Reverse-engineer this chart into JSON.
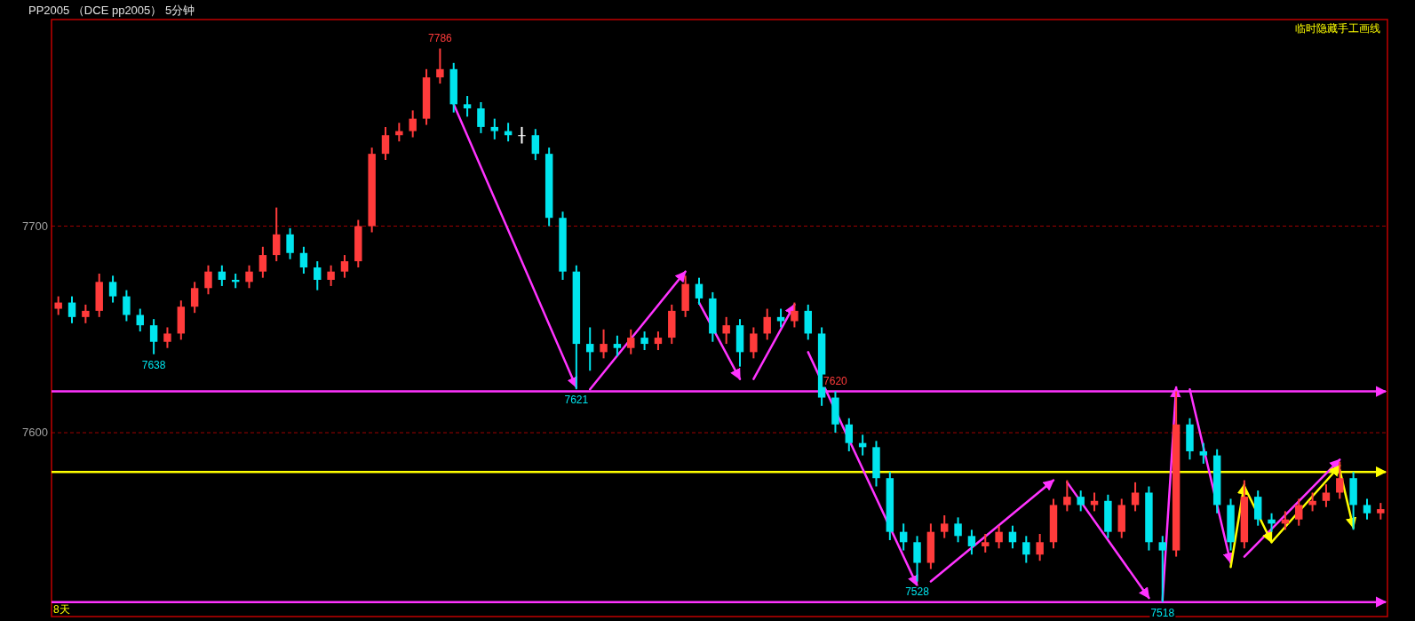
{
  "chart_data": {
    "type": "candlestick",
    "title": "PP2005 （DCE pp2005） 5分钟",
    "categories": [
      null,
      null,
      null,
      null,
      null,
      null,
      null,
      null,
      null,
      null,
      null,
      null,
      null,
      null,
      null,
      null,
      null,
      null,
      null,
      null,
      null,
      null,
      null,
      null,
      null,
      null,
      null,
      null,
      null,
      null,
      null,
      null,
      null,
      null,
      null,
      null,
      null,
      null,
      null,
      null,
      null,
      null,
      null,
      null,
      null,
      null,
      null,
      null,
      null,
      null,
      null,
      null,
      null,
      null,
      null,
      null,
      null,
      null,
      null,
      null,
      null,
      null,
      null,
      null,
      null,
      null,
      null,
      null,
      null,
      null,
      null,
      null,
      null,
      null,
      null,
      null,
      null,
      null,
      null,
      null,
      null,
      null,
      null,
      null,
      null,
      null,
      null,
      null,
      null,
      null,
      null,
      null,
      null,
      null,
      null,
      null,
      null,
      null
    ],
    "ohlc": [
      [
        7660,
        7666,
        7657,
        7663
      ],
      [
        7663,
        7666,
        7653,
        7656
      ],
      [
        7656,
        7662,
        7653,
        7659
      ],
      [
        7659,
        7677,
        7656,
        7673
      ],
      [
        7673,
        7676,
        7663,
        7666
      ],
      [
        7666,
        7669,
        7654,
        7657
      ],
      [
        7657,
        7660,
        7649,
        7652
      ],
      [
        7652,
        7655,
        7638,
        7644
      ],
      [
        7644,
        7651,
        7641,
        7648
      ],
      [
        7648,
        7664,
        7645,
        7661
      ],
      [
        7661,
        7673,
        7658,
        7670
      ],
      [
        7670,
        7681,
        7667,
        7678
      ],
      [
        7678,
        7681,
        7671,
        7674
      ],
      [
        7674,
        7677,
        7670,
        7673
      ],
      [
        7673,
        7681,
        7670,
        7678
      ],
      [
        7678,
        7690,
        7675,
        7686
      ],
      [
        7686,
        7709,
        7683,
        7696
      ],
      [
        7696,
        7699,
        7684,
        7687
      ],
      [
        7687,
        7690,
        7677,
        7680
      ],
      [
        7680,
        7683,
        7669,
        7674
      ],
      [
        7674,
        7681,
        7671,
        7678
      ],
      [
        7678,
        7686,
        7675,
        7683
      ],
      [
        7683,
        7703,
        7680,
        7700
      ],
      [
        7700,
        7738,
        7697,
        7735
      ],
      [
        7735,
        7748,
        7732,
        7744
      ],
      [
        7744,
        7750,
        7741,
        7746
      ],
      [
        7746,
        7756,
        7743,
        7752
      ],
      [
        7752,
        7776,
        7749,
        7772
      ],
      [
        7772,
        7786,
        7769,
        7776
      ],
      [
        7776,
        7779,
        7755,
        7759
      ],
      [
        7759,
        7763,
        7753,
        7757
      ],
      [
        7757,
        7760,
        7745,
        7748
      ],
      [
        7748,
        7752,
        7742,
        7746
      ],
      [
        7746,
        7750,
        7741,
        7744
      ],
      [
        7744,
        7748,
        7740,
        7744
      ],
      [
        7744,
        7747,
        7732,
        7735
      ],
      [
        7735,
        7738,
        7700,
        7704
      ],
      [
        7704,
        7707,
        7674,
        7678
      ],
      [
        7678,
        7681,
        7621,
        7643
      ],
      [
        7643,
        7651,
        7630,
        7639
      ],
      [
        7639,
        7650,
        7636,
        7643
      ],
      [
        7643,
        7647,
        7637,
        7641
      ],
      [
        7641,
        7650,
        7638,
        7646
      ],
      [
        7646,
        7649,
        7640,
        7643
      ],
      [
        7643,
        7649,
        7640,
        7646
      ],
      [
        7646,
        7662,
        7643,
        7659
      ],
      [
        7659,
        7676,
        7656,
        7672
      ],
      [
        7672,
        7675,
        7662,
        7665
      ],
      [
        7665,
        7668,
        7644,
        7648
      ],
      [
        7648,
        7656,
        7643,
        7652
      ],
      [
        7652,
        7655,
        7632,
        7639
      ],
      [
        7639,
        7651,
        7636,
        7648
      ],
      [
        7648,
        7660,
        7645,
        7656
      ],
      [
        7656,
        7660,
        7651,
        7654
      ],
      [
        7654,
        7663,
        7651,
        7659
      ],
      [
        7659,
        7662,
        7645,
        7648
      ],
      [
        7648,
        7651,
        7613,
        7617
      ],
      [
        7617,
        7620,
        7600,
        7604
      ],
      [
        7604,
        7607,
        7591,
        7595
      ],
      [
        7595,
        7599,
        7589,
        7593
      ],
      [
        7593,
        7596,
        7574,
        7578
      ],
      [
        7578,
        7581,
        7548,
        7552
      ],
      [
        7552,
        7556,
        7543,
        7547
      ],
      [
        7547,
        7550,
        7528,
        7537
      ],
      [
        7537,
        7556,
        7534,
        7552
      ],
      [
        7552,
        7560,
        7549,
        7556
      ],
      [
        7556,
        7559,
        7547,
        7550
      ],
      [
        7550,
        7553,
        7541,
        7545
      ],
      [
        7545,
        7551,
        7542,
        7547
      ],
      [
        7547,
        7555,
        7544,
        7552
      ],
      [
        7552,
        7555,
        7544,
        7547
      ],
      [
        7547,
        7550,
        7537,
        7541
      ],
      [
        7541,
        7551,
        7538,
        7547
      ],
      [
        7547,
        7568,
        7544,
        7565
      ],
      [
        7565,
        7577,
        7562,
        7569
      ],
      [
        7569,
        7572,
        7562,
        7565
      ],
      [
        7565,
        7571,
        7562,
        7567
      ],
      [
        7567,
        7570,
        7549,
        7552
      ],
      [
        7552,
        7568,
        7549,
        7565
      ],
      [
        7565,
        7576,
        7562,
        7571
      ],
      [
        7571,
        7574,
        7543,
        7547
      ],
      [
        7547,
        7550,
        7518,
        7543
      ],
      [
        7543,
        7620,
        7540,
        7604
      ],
      [
        7604,
        7607,
        7587,
        7591
      ],
      [
        7591,
        7595,
        7585,
        7589
      ],
      [
        7589,
        7592,
        7561,
        7565
      ],
      [
        7565,
        7568,
        7543,
        7547
      ],
      [
        7547,
        7577,
        7544,
        7569
      ],
      [
        7569,
        7572,
        7555,
        7558
      ],
      [
        7558,
        7561,
        7552,
        7556
      ],
      [
        7556,
        7562,
        7553,
        7558
      ],
      [
        7558,
        7568,
        7555,
        7565
      ],
      [
        7565,
        7571,
        7562,
        7567
      ],
      [
        7567,
        7575,
        7564,
        7571
      ],
      [
        7571,
        7586,
        7568,
        7578
      ],
      [
        7578,
        7581,
        7553,
        7565
      ],
      [
        7565,
        7568,
        7558,
        7561
      ],
      [
        7561,
        7566,
        7558,
        7563
      ]
    ],
    "series": [
      {
        "type": "line",
        "color": "#ff33ff",
        "values": [
          null,
          null,
          null,
          null,
          null,
          null,
          null,
          null,
          null,
          null,
          null,
          null,
          null,
          null,
          null,
          null,
          null,
          null,
          null,
          null,
          null,
          null,
          null,
          null,
          null,
          null,
          null,
          null,
          null,
          7759,
          null,
          null,
          null,
          null,
          null,
          null,
          null,
          null,
          7622,
          null,
          null,
          null,
          null,
          null,
          null,
          null,
          null,
          null,
          null,
          null,
          null,
          null,
          null,
          null,
          null,
          null,
          null,
          null,
          null,
          null,
          null,
          null,
          null,
          null,
          null,
          null,
          null,
          null,
          null,
          null,
          null,
          null,
          null,
          null,
          null,
          null,
          null,
          null,
          null,
          null,
          null,
          null,
          null,
          null,
          null,
          null,
          null,
          null,
          null,
          null,
          null,
          null,
          null,
          null,
          null,
          null,
          null,
          null
        ]
      },
      {
        "type": "line",
        "color": "#ff33ff",
        "values": [
          null,
          null,
          null,
          null,
          null,
          null,
          null,
          null,
          null,
          null,
          null,
          null,
          null,
          null,
          null,
          null,
          null,
          null,
          null,
          null,
          null,
          null,
          null,
          null,
          null,
          null,
          null,
          null,
          null,
          null,
          null,
          null,
          null,
          null,
          null,
          null,
          null,
          null,
          null,
          7621,
          null,
          null,
          null,
          null,
          null,
          null,
          7678,
          null,
          null,
          null,
          null,
          null,
          null,
          null,
          null,
          null,
          null,
          null,
          null,
          null,
          null,
          null,
          null,
          null,
          null,
          null,
          null,
          null,
          null,
          null,
          null,
          null,
          null,
          null,
          null,
          null,
          null,
          null,
          null,
          null,
          null,
          null,
          null,
          null,
          null,
          null,
          null,
          null,
          null,
          null,
          null,
          null,
          null,
          null,
          null,
          null,
          null,
          null
        ]
      },
      {
        "type": "line",
        "color": "#ff33ff",
        "values": [
          null,
          null,
          null,
          null,
          null,
          null,
          null,
          null,
          null,
          null,
          null,
          null,
          null,
          null,
          null,
          null,
          null,
          null,
          null,
          null,
          null,
          null,
          null,
          null,
          null,
          null,
          null,
          null,
          null,
          null,
          null,
          null,
          null,
          null,
          null,
          null,
          null,
          null,
          null,
          null,
          null,
          null,
          null,
          null,
          null,
          null,
          null,
          7663,
          null,
          null,
          7626,
          null,
          null,
          null,
          null,
          null,
          null,
          null,
          null,
          null,
          null,
          null,
          null,
          null,
          null,
          null,
          null,
          null,
          null,
          null,
          null,
          null,
          null,
          null,
          null,
          null,
          null,
          null,
          null,
          null,
          null,
          null,
          null,
          null,
          null,
          null,
          null,
          null,
          null,
          null,
          null,
          null,
          null,
          null,
          null,
          null,
          null,
          null
        ]
      },
      {
        "type": "line",
        "color": "#ff33ff",
        "values": [
          null,
          null,
          null,
          null,
          null,
          null,
          null,
          null,
          null,
          null,
          null,
          null,
          null,
          null,
          null,
          null,
          null,
          null,
          null,
          null,
          null,
          null,
          null,
          null,
          null,
          null,
          null,
          null,
          null,
          null,
          null,
          null,
          null,
          null,
          null,
          null,
          null,
          null,
          null,
          null,
          null,
          null,
          null,
          null,
          null,
          null,
          null,
          null,
          null,
          null,
          null,
          7626,
          null,
          null,
          7662,
          null,
          null,
          null,
          null,
          null,
          null,
          null,
          null,
          null,
          null,
          null,
          null,
          null,
          null,
          null,
          null,
          null,
          null,
          null,
          null,
          null,
          null,
          null,
          null,
          null,
          null,
          null,
          null,
          null,
          null,
          null,
          null,
          null,
          null,
          null,
          null,
          null,
          null,
          null,
          null,
          null,
          null,
          null
        ]
      },
      {
        "type": "line",
        "color": "#ff33ff",
        "values": [
          null,
          null,
          null,
          null,
          null,
          null,
          null,
          null,
          null,
          null,
          null,
          null,
          null,
          null,
          null,
          null,
          null,
          null,
          null,
          null,
          null,
          null,
          null,
          null,
          null,
          null,
          null,
          null,
          null,
          null,
          null,
          null,
          null,
          null,
          null,
          null,
          null,
          null,
          null,
          null,
          null,
          null,
          null,
          null,
          null,
          null,
          null,
          null,
          null,
          null,
          null,
          null,
          null,
          null,
          null,
          7639,
          null,
          null,
          null,
          null,
          null,
          null,
          null,
          7526,
          null,
          null,
          null,
          null,
          null,
          null,
          null,
          null,
          null,
          null,
          null,
          null,
          null,
          null,
          null,
          null,
          null,
          null,
          null,
          null,
          null,
          null,
          null,
          null,
          null,
          null,
          null,
          null,
          null,
          null,
          null,
          null,
          null,
          null
        ]
      },
      {
        "type": "line",
        "color": "#ff33ff",
        "values": [
          null,
          null,
          null,
          null,
          null,
          null,
          null,
          null,
          null,
          null,
          null,
          null,
          null,
          null,
          null,
          null,
          null,
          null,
          null,
          null,
          null,
          null,
          null,
          null,
          null,
          null,
          null,
          null,
          null,
          null,
          null,
          null,
          null,
          null,
          null,
          null,
          null,
          null,
          null,
          null,
          null,
          null,
          null,
          null,
          null,
          null,
          null,
          null,
          null,
          null,
          null,
          null,
          null,
          null,
          null,
          null,
          null,
          null,
          null,
          null,
          null,
          null,
          null,
          null,
          7528,
          null,
          null,
          null,
          null,
          null,
          null,
          null,
          null,
          7577,
          null,
          null,
          null,
          null,
          null,
          null,
          null,
          null,
          null,
          null,
          null,
          null,
          null,
          null,
          null,
          null,
          null,
          null,
          null,
          null,
          null,
          null,
          null,
          null
        ]
      },
      {
        "type": "line",
        "color": "#ff33ff",
        "values": [
          null,
          null,
          null,
          null,
          null,
          null,
          null,
          null,
          null,
          null,
          null,
          null,
          null,
          null,
          null,
          null,
          null,
          null,
          null,
          null,
          null,
          null,
          null,
          null,
          null,
          null,
          null,
          null,
          null,
          null,
          null,
          null,
          null,
          null,
          null,
          null,
          null,
          null,
          null,
          null,
          null,
          null,
          null,
          null,
          null,
          null,
          null,
          null,
          null,
          null,
          null,
          null,
          null,
          null,
          null,
          null,
          null,
          null,
          null,
          null,
          null,
          null,
          null,
          null,
          null,
          null,
          null,
          null,
          null,
          null,
          null,
          null,
          null,
          null,
          7576,
          null,
          null,
          null,
          null,
          null,
          7520,
          null,
          null,
          null,
          null,
          null,
          null,
          null,
          null,
          null,
          null,
          null,
          null,
          null,
          null,
          null,
          null,
          null
        ]
      },
      {
        "type": "line",
        "color": "#ff33ff",
        "values": [
          null,
          null,
          null,
          null,
          null,
          null,
          null,
          null,
          null,
          null,
          null,
          null,
          null,
          null,
          null,
          null,
          null,
          null,
          null,
          null,
          null,
          null,
          null,
          null,
          null,
          null,
          null,
          null,
          null,
          null,
          null,
          null,
          null,
          null,
          null,
          null,
          null,
          null,
          null,
          null,
          null,
          null,
          null,
          null,
          null,
          null,
          null,
          null,
          null,
          null,
          null,
          null,
          null,
          null,
          null,
          null,
          null,
          null,
          null,
          null,
          null,
          null,
          null,
          null,
          null,
          null,
          null,
          null,
          null,
          null,
          null,
          null,
          null,
          null,
          null,
          null,
          null,
          null,
          null,
          null,
          null,
          7519,
          7622,
          null,
          null,
          null,
          null,
          null,
          null,
          null,
          null,
          null,
          null,
          null,
          null,
          null,
          null,
          null
        ]
      },
      {
        "type": "line",
        "color": "#ff33ff",
        "values": [
          null,
          null,
          null,
          null,
          null,
          null,
          null,
          null,
          null,
          null,
          null,
          null,
          null,
          null,
          null,
          null,
          null,
          null,
          null,
          null,
          null,
          null,
          null,
          null,
          null,
          null,
          null,
          null,
          null,
          null,
          null,
          null,
          null,
          null,
          null,
          null,
          null,
          null,
          null,
          null,
          null,
          null,
          null,
          null,
          null,
          null,
          null,
          null,
          null,
          null,
          null,
          null,
          null,
          null,
          null,
          null,
          null,
          null,
          null,
          null,
          null,
          null,
          null,
          null,
          null,
          null,
          null,
          null,
          null,
          null,
          null,
          null,
          null,
          null,
          null,
          null,
          null,
          null,
          null,
          null,
          null,
          null,
          null,
          7621,
          null,
          null,
          7537,
          null,
          null,
          null,
          null,
          null,
          null,
          null,
          null,
          null,
          null,
          null
        ]
      },
      {
        "type": "line",
        "color": "#ff33ff",
        "values": [
          null,
          null,
          null,
          null,
          null,
          null,
          null,
          null,
          null,
          null,
          null,
          null,
          null,
          null,
          null,
          null,
          null,
          null,
          null,
          null,
          null,
          null,
          null,
          null,
          null,
          null,
          null,
          null,
          null,
          null,
          null,
          null,
          null,
          null,
          null,
          null,
          null,
          null,
          null,
          null,
          null,
          null,
          null,
          null,
          null,
          null,
          null,
          null,
          null,
          null,
          null,
          null,
          null,
          null,
          null,
          null,
          null,
          null,
          null,
          null,
          null,
          null,
          null,
          null,
          null,
          null,
          null,
          null,
          null,
          null,
          null,
          null,
          null,
          null,
          null,
          null,
          null,
          null,
          null,
          null,
          null,
          null,
          null,
          null,
          null,
          null,
          null,
          7540,
          null,
          null,
          null,
          null,
          null,
          null,
          7587,
          null,
          null,
          null
        ]
      },
      {
        "type": "line",
        "color": "#ffff00",
        "values": [
          null,
          null,
          null,
          null,
          null,
          null,
          null,
          null,
          null,
          null,
          null,
          null,
          null,
          null,
          null,
          null,
          null,
          null,
          null,
          null,
          null,
          null,
          null,
          null,
          null,
          null,
          null,
          null,
          null,
          null,
          null,
          null,
          null,
          null,
          null,
          null,
          null,
          null,
          null,
          null,
          null,
          null,
          null,
          null,
          null,
          null,
          null,
          null,
          null,
          null,
          null,
          null,
          null,
          null,
          null,
          null,
          null,
          null,
          null,
          null,
          null,
          null,
          null,
          null,
          null,
          null,
          null,
          null,
          null,
          null,
          null,
          null,
          null,
          null,
          null,
          null,
          null,
          null,
          null,
          null,
          null,
          null,
          null,
          null,
          null,
          null,
          7535,
          7575,
          null,
          null,
          null,
          null,
          null,
          null,
          null,
          null,
          null,
          null
        ]
      },
      {
        "type": "line",
        "color": "#ffff00",
        "values": [
          null,
          null,
          null,
          null,
          null,
          null,
          null,
          null,
          null,
          null,
          null,
          null,
          null,
          null,
          null,
          null,
          null,
          null,
          null,
          null,
          null,
          null,
          null,
          null,
          null,
          null,
          null,
          null,
          null,
          null,
          null,
          null,
          null,
          null,
          null,
          null,
          null,
          null,
          null,
          null,
          null,
          null,
          null,
          null,
          null,
          null,
          null,
          null,
          null,
          null,
          null,
          null,
          null,
          null,
          null,
          null,
          null,
          null,
          null,
          null,
          null,
          null,
          null,
          null,
          null,
          null,
          null,
          null,
          null,
          null,
          null,
          null,
          null,
          null,
          null,
          null,
          null,
          null,
          null,
          null,
          null,
          null,
          null,
          null,
          null,
          null,
          null,
          7574,
          null,
          7547,
          null,
          null,
          null,
          null,
          null,
          null,
          null,
          null
        ]
      },
      {
        "type": "line",
        "color": "#ffff00",
        "values": [
          null,
          null,
          null,
          null,
          null,
          null,
          null,
          null,
          null,
          null,
          null,
          null,
          null,
          null,
          null,
          null,
          null,
          null,
          null,
          null,
          null,
          null,
          null,
          null,
          null,
          null,
          null,
          null,
          null,
          null,
          null,
          null,
          null,
          null,
          null,
          null,
          null,
          null,
          null,
          null,
          null,
          null,
          null,
          null,
          null,
          null,
          null,
          null,
          null,
          null,
          null,
          null,
          null,
          null,
          null,
          null,
          null,
          null,
          null,
          null,
          null,
          null,
          null,
          null,
          null,
          null,
          null,
          null,
          null,
          null,
          null,
          null,
          null,
          null,
          null,
          null,
          null,
          null,
          null,
          null,
          null,
          null,
          null,
          null,
          null,
          null,
          null,
          null,
          null,
          7547,
          null,
          null,
          null,
          null,
          7584,
          null,
          null,
          null
        ]
      },
      {
        "type": "line",
        "color": "#ffff00",
        "values": [
          null,
          null,
          null,
          null,
          null,
          null,
          null,
          null,
          null,
          null,
          null,
          null,
          null,
          null,
          null,
          null,
          null,
          null,
          null,
          null,
          null,
          null,
          null,
          null,
          null,
          null,
          null,
          null,
          null,
          null,
          null,
          null,
          null,
          null,
          null,
          null,
          null,
          null,
          null,
          null,
          null,
          null,
          null,
          null,
          null,
          null,
          null,
          null,
          null,
          null,
          null,
          null,
          null,
          null,
          null,
          null,
          null,
          null,
          null,
          null,
          null,
          null,
          null,
          null,
          null,
          null,
          null,
          null,
          null,
          null,
          null,
          null,
          null,
          null,
          null,
          null,
          null,
          null,
          null,
          null,
          null,
          null,
          null,
          null,
          null,
          null,
          null,
          null,
          null,
          null,
          null,
          null,
          null,
          null,
          7582,
          7554,
          null,
          null
        ]
      }
    ],
    "ref_lines": [
      {
        "axis": "y",
        "value": 7620,
        "color": "#ff33ff"
      },
      {
        "axis": "y",
        "value": 7518,
        "color": "#ff33ff"
      },
      {
        "axis": "y",
        "value": 7581,
        "color": "#ffff00"
      }
    ],
    "ylim": [
      7511,
      7800
    ],
    "yticks": [
      7600,
      7700
    ],
    "grid": "y",
    "tick_labels": "y",
    "annotations": [
      "临时隐藏手工画线",
      "8天",
      {
        "text": "7786",
        "y": 7786
      },
      {
        "text": "7638",
        "y": 7638
      },
      {
        "text": "7621",
        "y": 7621
      },
      {
        "text": "7528",
        "y": 7528
      },
      {
        "text": "7518",
        "y": 7518
      },
      {
        "text": "7620",
        "y": 7620
      }
    ]
  }
}
